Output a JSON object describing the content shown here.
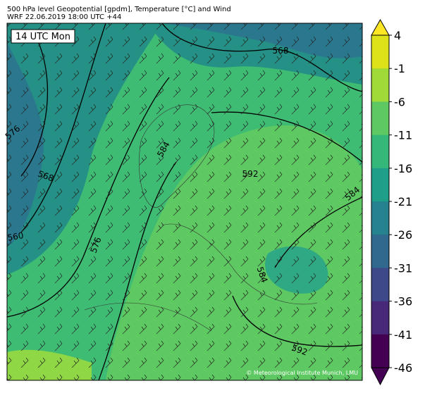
{
  "header": {
    "title": "500 hPa level Geopotential [gpdm], Temperature [°C] and Wind",
    "subtitle": "WRF 22.06.2019 18:00 UTC +44"
  },
  "map": {
    "time_label": "14 UTC Mon",
    "contour_labels": [
      "568",
      "576",
      "568",
      "584",
      "592",
      "584",
      "560",
      "576",
      "584",
      "592"
    ],
    "credit": "© Meteorological Institute Munich, LMU"
  },
  "colorbar": {
    "ticks": [
      4,
      -1,
      -6,
      -11,
      -16,
      -21,
      -26,
      -31,
      -36,
      -41,
      -46
    ],
    "colors": [
      "#dde318",
      "#a0da39",
      "#5ec962",
      "#35b779",
      "#1f9e89",
      "#26828e",
      "#31688e",
      "#3e4989",
      "#482878",
      "#440154"
    ],
    "over_color": "#fde725",
    "under_color": "#440154"
  }
}
